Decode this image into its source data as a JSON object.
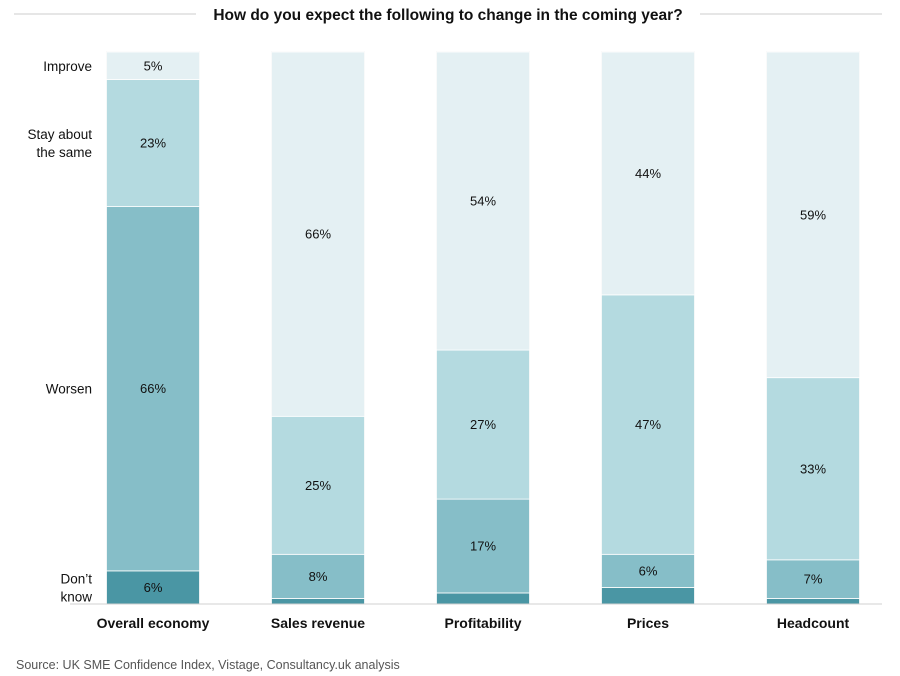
{
  "chart_data": {
    "type": "bar",
    "stacked": true,
    "title": "How do you expect the following to change in the coming year?",
    "source": "Source: UK SME Confidence Index, Vistage, Consultancy.uk analysis",
    "categories": [
      "Overall economy",
      "Sales revenue",
      "Profitability",
      "Prices",
      "Headcount"
    ],
    "series": [
      {
        "name": "Don't know",
        "legend_lines": [
          "Don’t",
          "know"
        ],
        "color": "#4a96a4",
        "values": [
          6,
          1,
          2,
          3,
          1
        ],
        "labels": [
          "6%",
          "",
          "",
          "",
          ""
        ]
      },
      {
        "name": "Worsen",
        "legend_lines": [
          "Worsen"
        ],
        "color": "#86bec8",
        "values": [
          66,
          8,
          17,
          6,
          7
        ],
        "labels": [
          "66%",
          "8%",
          "17%",
          "6%",
          "7%"
        ]
      },
      {
        "name": "Stay about the same",
        "legend_lines": [
          "Stay about",
          "the same"
        ],
        "color": "#b4dae0",
        "values": [
          23,
          25,
          27,
          47,
          33
        ],
        "labels": [
          "23%",
          "25%",
          "27%",
          "47%",
          "33%"
        ]
      },
      {
        "name": "Improve",
        "legend_lines": [
          "Improve"
        ],
        "color": "#e4f0f3",
        "values": [
          5,
          66,
          54,
          44,
          59
        ],
        "labels": [
          "5%",
          "66%",
          "54%",
          "44%",
          "59%"
        ]
      }
    ],
    "ylim": [
      0,
      100
    ],
    "grid": false,
    "legend": "left"
  }
}
